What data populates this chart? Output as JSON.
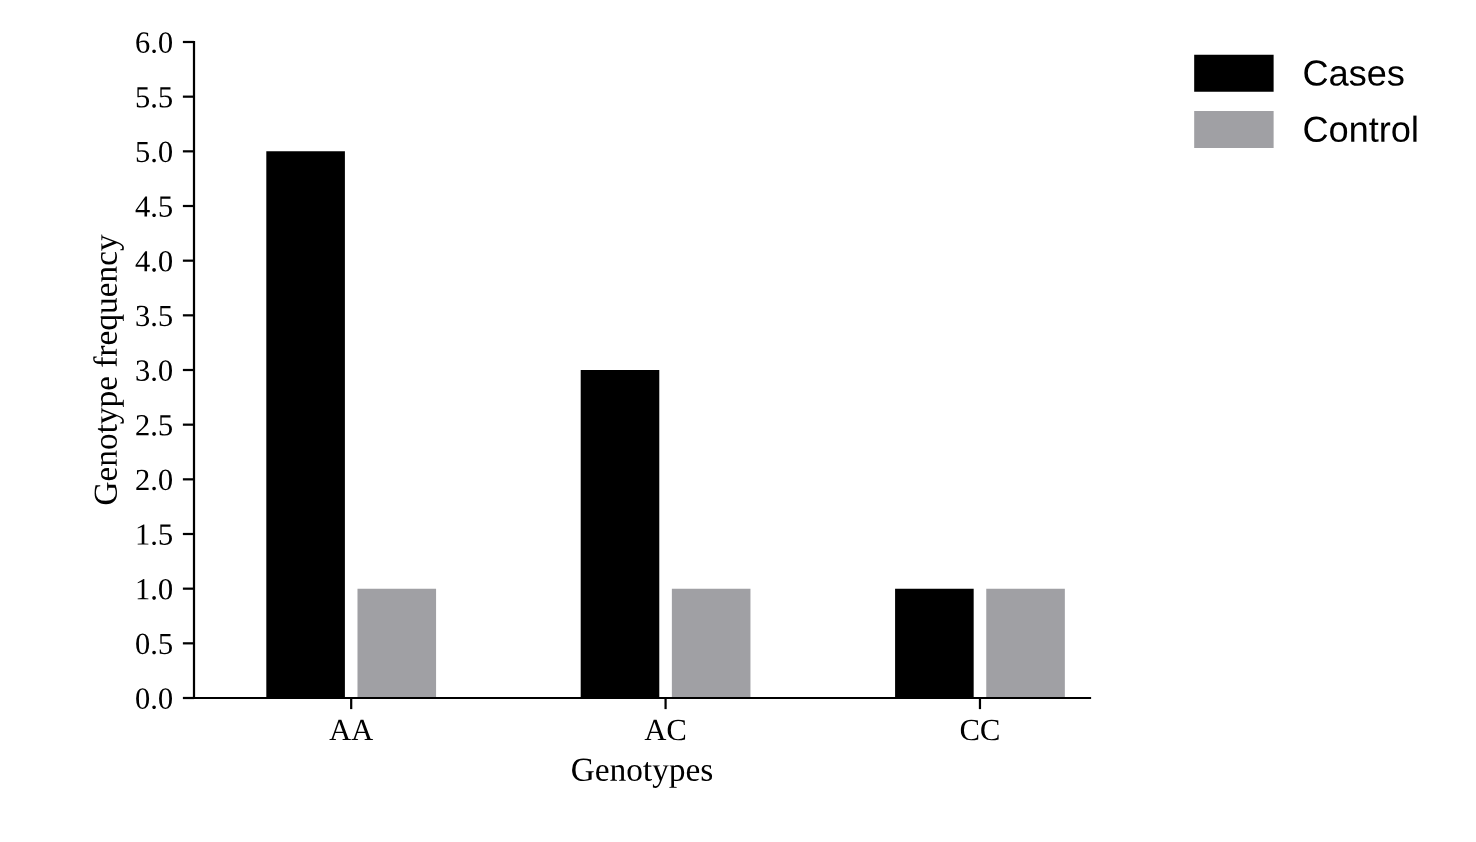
{
  "chart_data": {
    "type": "bar",
    "xlabel": "Genotypes",
    "ylabel": "Genotype frequency",
    "categories": [
      "AA",
      "AC",
      "CC"
    ],
    "series": [
      {
        "name": "Cases",
        "color": "#000000",
        "values": [
          5.0,
          3.0,
          1.0
        ]
      },
      {
        "name": "Control",
        "color": "#a0a0a4",
        "values": [
          1.0,
          1.0,
          1.0
        ]
      }
    ],
    "ylim": [
      0,
      6.0
    ],
    "yticks": [
      {
        "value": 0,
        "label": "0.0"
      },
      {
        "value": 0.5,
        "label": "0.5"
      },
      {
        "value": 1.0,
        "label": "1.0"
      },
      {
        "value": 1.5,
        "label": "1.5"
      },
      {
        "value": 2.0,
        "label": "2.0"
      },
      {
        "value": 2.5,
        "label": "2.5"
      },
      {
        "value": 3.0,
        "label": "3.0"
      },
      {
        "value": 3.5,
        "label": "3.5"
      },
      {
        "value": 4.0,
        "label": "4.0"
      },
      {
        "value": 4.5,
        "label": "4.5"
      },
      {
        "value": 5.0,
        "label": "5.0"
      },
      {
        "value": 5.5,
        "label": "5.5"
      },
      {
        "value": 6.0,
        "label": "6.0"
      }
    ],
    "grid": false,
    "legend": "top right"
  }
}
